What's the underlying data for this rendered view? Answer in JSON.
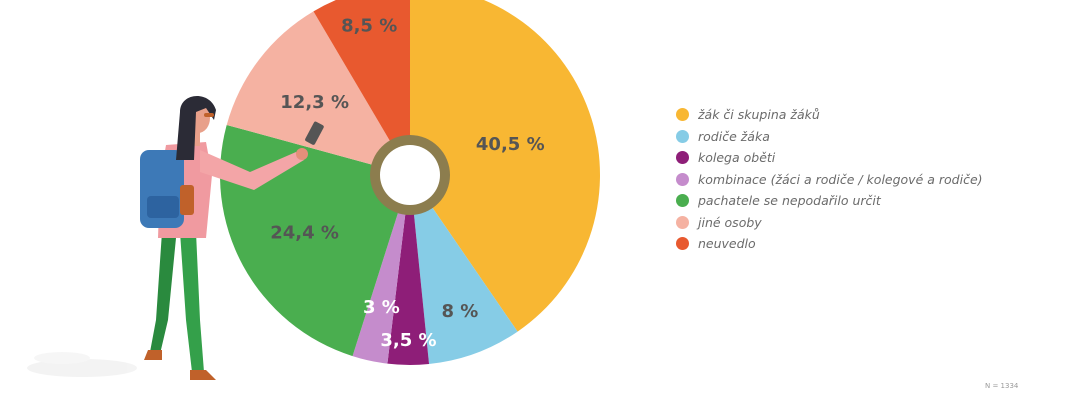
{
  "chart_data": {
    "type": "pie",
    "title": "",
    "categories": [
      "žák či skupina žáků",
      "rodiče žáka",
      "kolega oběti",
      "kombinace (žáci a rodiče / kolegové a rodiče)",
      "pachatele se nepodařilo určit",
      "jiné osoby",
      "neuvedlo"
    ],
    "values": [
      40.5,
      8,
      3.5,
      3,
      24.4,
      12.3,
      8.5
    ],
    "labels": [
      "40,5 %",
      "8 %",
      "3,5 %",
      "3 %",
      "24,4 %",
      "12,3 %",
      "8,5 %"
    ],
    "colors": [
      "#f8b733",
      "#86cce6",
      "#8e1e78",
      "#c58ccc",
      "#4aae4f",
      "#f5b2a2",
      "#e8592f"
    ],
    "label_colors": [
      "#555555",
      "#555555",
      "#ffffff",
      "#ffffff",
      "#555555",
      "#555555",
      "#555555"
    ],
    "legend_position": "right",
    "center_ring_color": "#8c7d4e",
    "note": "N = 1334"
  },
  "illustration": {
    "figure_icon": "woman-with-backpack-holding-phone-icon"
  }
}
